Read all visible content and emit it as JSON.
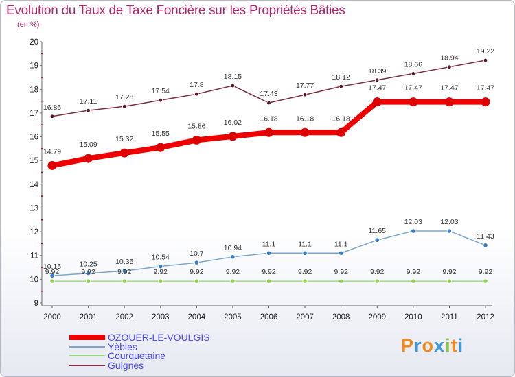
{
  "header": {
    "title": "Evolution du Taux de Taxe Foncière sur les Propriétés Bâties",
    "unit": "(en %)"
  },
  "brand": {
    "letters": [
      "P",
      "r",
      "o",
      "x",
      "i",
      "t",
      "i"
    ],
    "colors": [
      "#f08a1c",
      "#3a9ad9",
      "#f08a1c",
      "#3a9ad9",
      "#8cc63f",
      "#f08a1c",
      "#3a9ad9"
    ]
  },
  "chart_data": {
    "type": "line",
    "title": "Evolution du Taux de Taxe Foncière sur les Propriétés Bâties",
    "ylabel": "(en %)",
    "xlabel": "",
    "ylim": [
      9,
      20
    ],
    "yticks": [
      9,
      10,
      11,
      12,
      13,
      14,
      15,
      16,
      17,
      18,
      19,
      20
    ],
    "x": [
      "2000",
      "2001",
      "2002",
      "2003",
      "2004",
      "2005",
      "2006",
      "2007",
      "2008",
      "2009",
      "2010",
      "2011",
      "2012"
    ],
    "series": [
      {
        "name": "Guignes",
        "color": "#7a3040",
        "marker": "#5a1824",
        "values": [
          16.86,
          17.11,
          17.28,
          17.54,
          17.8,
          18.15,
          17.43,
          17.77,
          18.12,
          18.39,
          18.66,
          18.94,
          19.22
        ],
        "labels": [
          "16.86",
          "17.11",
          "17.28",
          "17.54",
          "17.8",
          "18.15",
          "17.43",
          "17.77",
          "18.12",
          "18.39",
          "18.66",
          "18.94",
          "19.22"
        ]
      },
      {
        "name": "OZOUER-LE-VOULGIS",
        "color": "#ee0000",
        "marker": "#dd0000",
        "values": [
          14.79,
          15.09,
          15.32,
          15.55,
          15.86,
          16.02,
          16.18,
          16.18,
          16.18,
          17.47,
          17.47,
          17.47,
          17.47
        ],
        "labels": [
          "14.79",
          "15.09",
          "15.32",
          "15.55",
          "15.86",
          "16.02",
          "16.18",
          "16.18",
          "16.18",
          "17.47",
          "17.47",
          "17.47",
          "17.47"
        ]
      },
      {
        "name": "Yèbles",
        "color": "#7ea6cc",
        "marker": "#3a7ec4",
        "values": [
          10.15,
          10.25,
          10.35,
          10.54,
          10.7,
          10.94,
          11.1,
          11.1,
          11.1,
          11.65,
          12.03,
          12.03,
          11.43
        ],
        "labels": [
          "10.15",
          "10.25",
          "10.35",
          "10.54",
          "10.7",
          "10.94",
          "11.1",
          "11.1",
          "11.1",
          "11.65",
          "12.03",
          "12.03",
          "11.43"
        ]
      },
      {
        "name": "Courquetaine",
        "color": "#9be07a",
        "marker": "#8fd24f",
        "values": [
          9.92,
          9.92,
          9.92,
          9.92,
          9.92,
          9.92,
          9.92,
          9.92,
          9.92,
          9.92,
          9.92,
          9.92,
          9.92
        ],
        "labels": [
          "9.92",
          "9.92",
          "9.92",
          "9.92",
          "9.92",
          "9.92",
          "9.92",
          "9.92",
          "9.92",
          "9.92",
          "9.92",
          "9.92",
          "9.92"
        ]
      }
    ],
    "legend": {
      "position": "bottom-left",
      "entries": [
        "OZOUER-LE-VOULGIS",
        "Yèbles",
        "Courquetaine",
        "Guignes"
      ],
      "colors": [
        "#ee0000",
        "#7ea6cc",
        "#9be07a",
        "#7a3040"
      ]
    }
  }
}
